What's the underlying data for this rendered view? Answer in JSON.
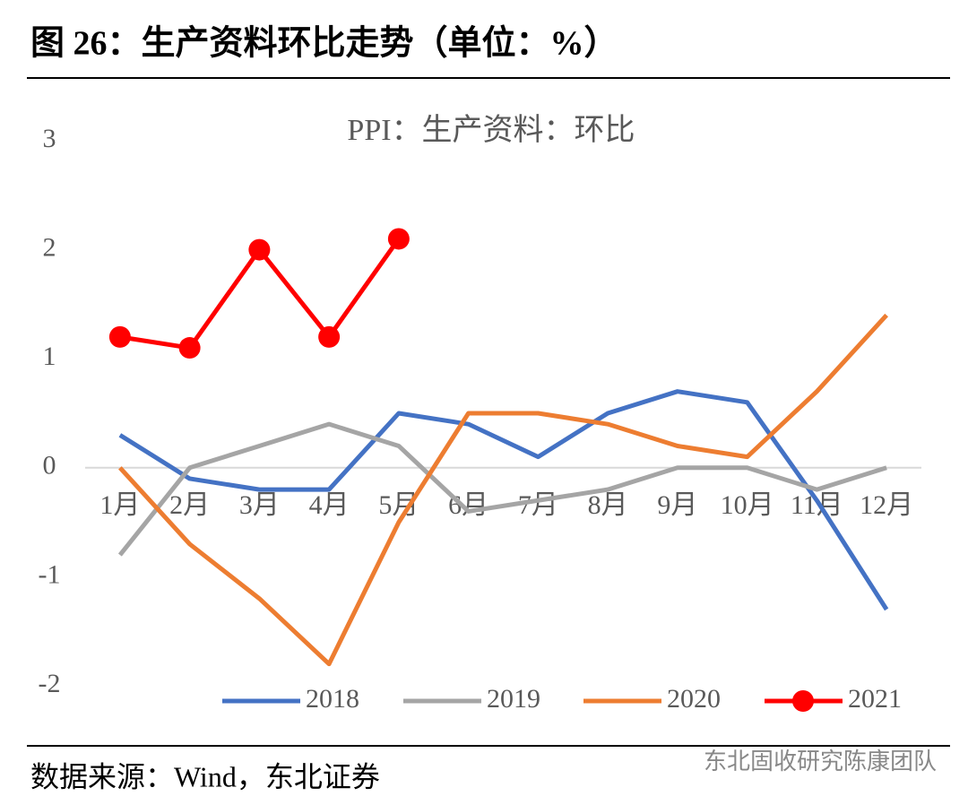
{
  "header": {
    "title": "图 26：生产资料环比走势（单位：%）"
  },
  "chart_data": {
    "type": "line",
    "title": "PPI：生产资料：环比",
    "categories": [
      "1月",
      "2月",
      "3月",
      "4月",
      "5月",
      "6月",
      "7月",
      "8月",
      "9月",
      "10月",
      "11月",
      "12月"
    ],
    "series": [
      {
        "name": "2018",
        "color": "#4472c4",
        "values": [
          0.3,
          -0.1,
          -0.2,
          -0.2,
          0.5,
          0.4,
          0.1,
          0.5,
          0.7,
          0.6,
          -0.3,
          -1.3
        ]
      },
      {
        "name": "2019",
        "color": "#a5a5a5",
        "values": [
          -0.8,
          0.0,
          0.2,
          0.4,
          0.2,
          -0.4,
          -0.3,
          -0.2,
          0.0,
          0.0,
          -0.2,
          0.0
        ]
      },
      {
        "name": "2020",
        "color": "#ed7d31",
        "values": [
          0.0,
          -0.7,
          -1.2,
          -1.8,
          -0.5,
          0.5,
          0.5,
          0.4,
          0.2,
          0.1,
          0.7,
          1.4
        ]
      },
      {
        "name": "2021",
        "color": "#ff0000",
        "markers": true,
        "values": [
          1.2,
          1.1,
          2.0,
          1.2,
          2.1,
          null,
          null,
          null,
          null,
          null,
          null,
          null
        ]
      }
    ],
    "ylim": [
      -2,
      3
    ],
    "yticks": [
      -2,
      -1,
      0,
      1,
      2,
      3
    ]
  },
  "footer": {
    "source": "数据来源：Wind，东北证券",
    "watermark": "东北固收研究陈康团队"
  }
}
